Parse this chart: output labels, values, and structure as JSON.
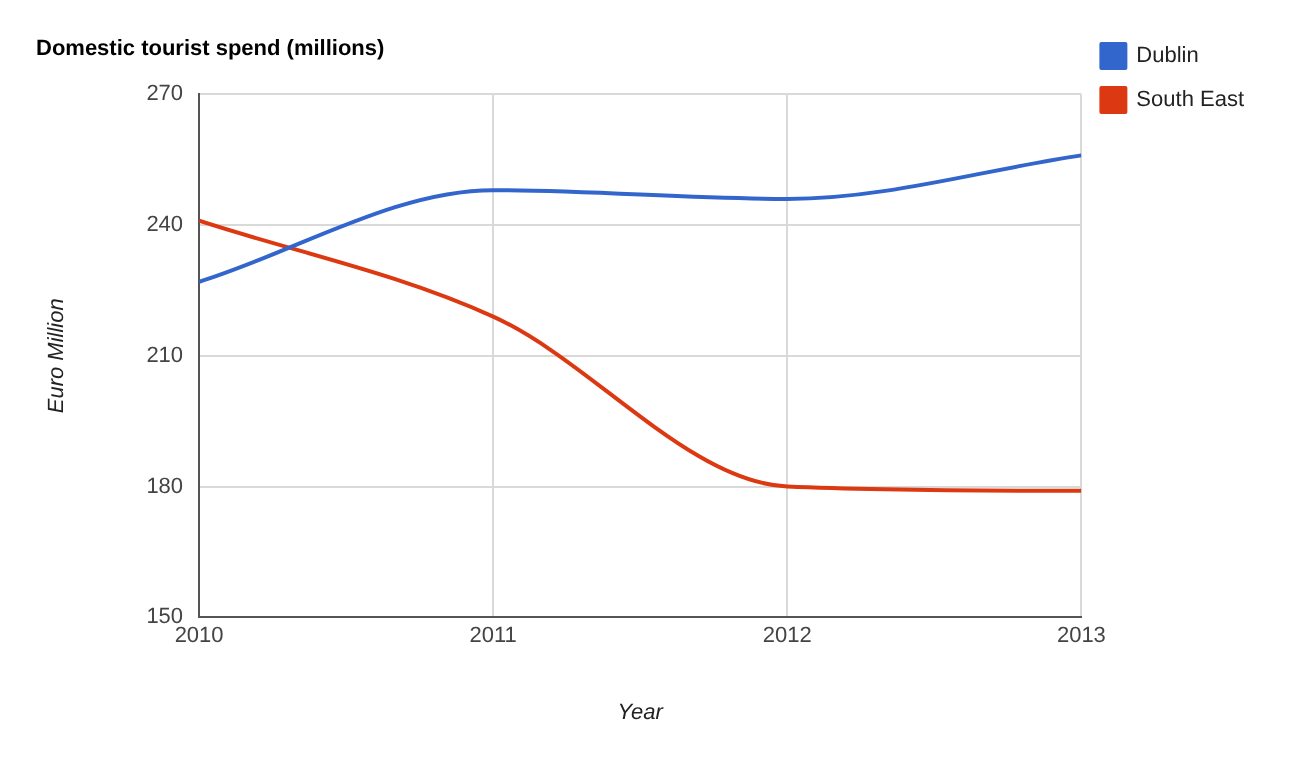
{
  "chart_data": {
    "type": "line",
    "title": "Domestic tourist spend (millions)",
    "xlabel": "Year",
    "ylabel": "Euro Million",
    "x": [
      2010,
      2011,
      2012,
      2013
    ],
    "series": [
      {
        "name": "Dublin",
        "color": "#3366cc",
        "values": [
          227,
          248,
          246,
          256
        ]
      },
      {
        "name": "South East",
        "color": "#dc3912",
        "values": [
          241,
          219,
          180,
          179
        ]
      }
    ],
    "xlim": [
      2010,
      2013
    ],
    "xticks": [
      2010,
      2011,
      2012,
      2013
    ],
    "ylim": [
      150,
      270
    ],
    "yticks": [
      150,
      180,
      210,
      240,
      270
    ],
    "grid": true,
    "legend": "top right",
    "marker": "none",
    "line_style": "solid"
  }
}
